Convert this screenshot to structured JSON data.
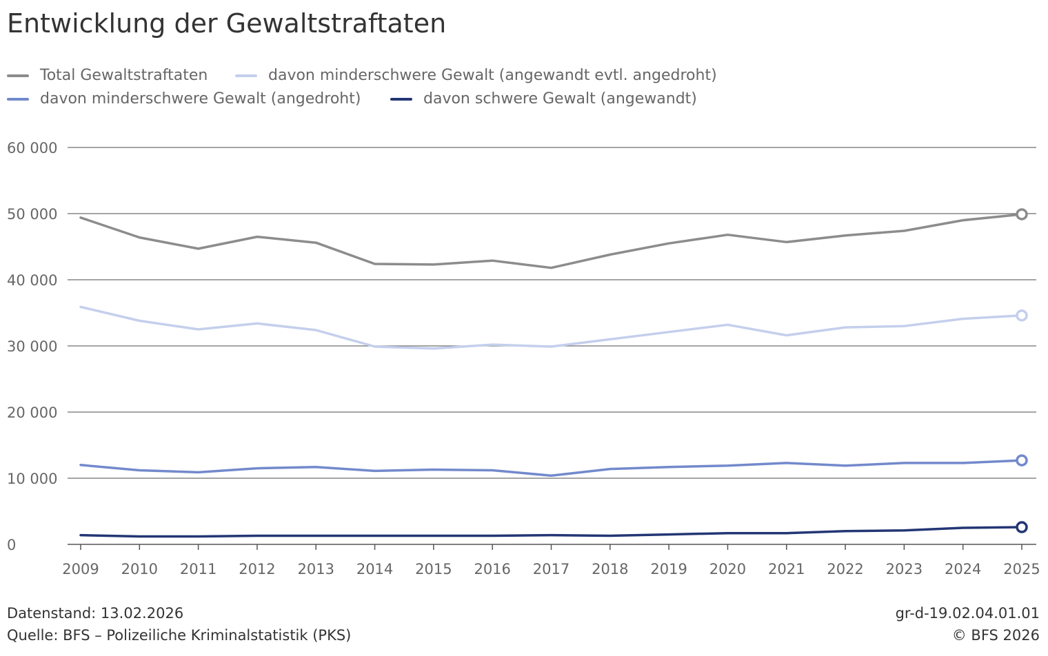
{
  "title": "Entwicklung der Gewaltstraftaten",
  "footer": {
    "date": "Datenstand: 13.02.2026",
    "source": "Quelle: BFS – Polizeiliche Kriminalstatistik (PKS)",
    "code": "gr-d-19.02.04.01.01",
    "copyright": "© BFS 2026"
  },
  "chart_data": {
    "type": "line",
    "title": "Entwicklung der Gewaltstraftaten",
    "xlabel": "",
    "ylabel": "",
    "x": [
      2009,
      2010,
      2011,
      2012,
      2013,
      2014,
      2015,
      2016,
      2017,
      2018,
      2019,
      2020,
      2021,
      2022,
      2023,
      2024,
      2025
    ],
    "ylim": [
      0,
      60000
    ],
    "yticks": [
      0,
      10000,
      20000,
      30000,
      40000,
      50000,
      60000
    ],
    "ytick_labels": [
      "0",
      "10 000",
      "20 000",
      "30 000",
      "40 000",
      "50 000",
      "60 000"
    ],
    "grid": true,
    "legend_position": "top-left",
    "series": [
      {
        "name": "Total Gewaltstraftaten",
        "color": "#8c8c8c",
        "values": [
          49400,
          46400,
          44700,
          46500,
          45600,
          42400,
          42300,
          42900,
          41800,
          43800,
          45500,
          46800,
          45700,
          46700,
          47400,
          49000,
          49900
        ]
      },
      {
        "name": "davon minderschwere Gewalt (angewandt evtl. angedroht)",
        "color": "#c4cfec",
        "values": [
          35900,
          33800,
          32500,
          33400,
          32400,
          29900,
          29600,
          30200,
          29900,
          31000,
          32100,
          33200,
          31600,
          32800,
          33000,
          34100,
          34600
        ]
      },
      {
        "name": "davon minderschwere Gewalt (angedroht)",
        "color": "#7389cc",
        "values": [
          12000,
          11200,
          10900,
          11500,
          11700,
          11100,
          11300,
          11200,
          10400,
          11400,
          11700,
          11900,
          12300,
          11900,
          12300,
          12300,
          12700
        ]
      },
      {
        "name": "davon schwere Gewalt (angewandt)",
        "color": "#233674",
        "values": [
          1400,
          1200,
          1200,
          1300,
          1300,
          1300,
          1300,
          1300,
          1400,
          1300,
          1500,
          1700,
          1700,
          2000,
          2100,
          2500,
          2600
        ]
      }
    ]
  }
}
